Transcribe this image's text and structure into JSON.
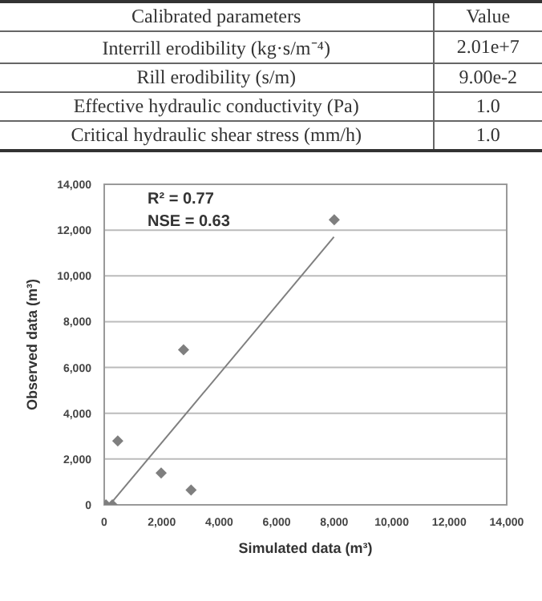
{
  "chart_data": [
    {
      "type": "other",
      "annotations": [
        "Calibrated parameters",
        "Value"
      ],
      "categories": [
        "Interrill erodibility (kg·s/m⁻⁴)",
        "Rill erodibility (s/m)",
        "Effective hydraulic conductivity (Pa)",
        "Critical hydraulic shear stress (mm/h)"
      ],
      "value_labels": [
        "2.01e+7",
        "9.00e-2",
        "1.0",
        "1.0"
      ]
    },
    {
      "type": "scatter",
      "xlabel": "Simulated data (m³)",
      "ylabel": "Observed data (m³)",
      "annotations": [
        "R² = 0.77",
        "NSE = 0.63"
      ],
      "series": [
        {
          "type": "scatter",
          "color": "#7f7f7f",
          "marker": "diamond",
          "x": [
            60,
            280,
            470,
            1980,
            2760,
            3020,
            8000
          ],
          "values": [
            0,
            0,
            2790,
            1390,
            6770,
            650,
            12450
          ]
        },
        {
          "type": "line",
          "color": "#7f7f7f",
          "marker": "none",
          "x": [
            250,
            7990
          ],
          "values": [
            90,
            11700
          ]
        }
      ],
      "xlim": [
        0,
        14000
      ],
      "xticks": [
        0,
        {
          "value": 2000,
          "label": "2,000"
        },
        {
          "value": 4000,
          "label": "4,000"
        },
        {
          "value": 6000,
          "label": "6,000"
        },
        {
          "value": 8000,
          "label": "8,000"
        },
        {
          "value": 10000,
          "label": "10,000"
        },
        {
          "value": 12000,
          "label": "12,000"
        },
        {
          "value": 14000,
          "label": "14,000"
        }
      ],
      "ylim": [
        0,
        14000
      ],
      "yticks": [
        0,
        {
          "value": 2000,
          "label": "2,000"
        },
        {
          "value": 4000,
          "label": "4,000"
        },
        {
          "value": 6000,
          "label": "6,000"
        },
        {
          "value": 8000,
          "label": "8,000"
        },
        {
          "value": 10000,
          "label": "10,000"
        },
        {
          "value": 12000,
          "label": "12,000"
        },
        {
          "value": 14000,
          "label": "14,000"
        }
      ],
      "grid": "y"
    }
  ]
}
